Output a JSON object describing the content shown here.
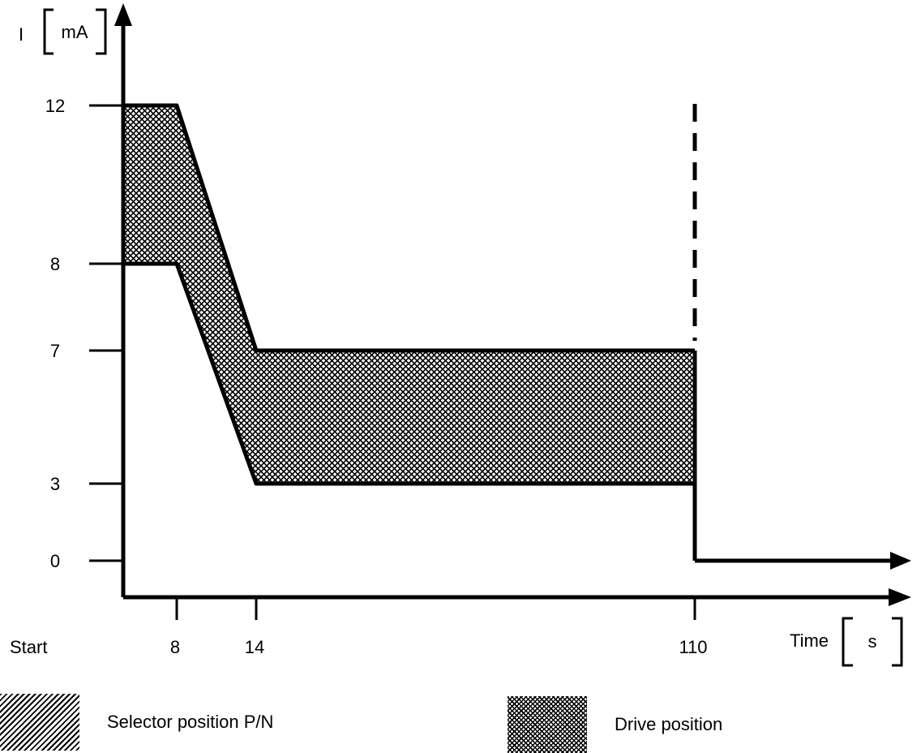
{
  "chart_data": {
    "type": "area",
    "title": "",
    "ylabel": "I",
    "y_unit": "mA",
    "xlabel": "Time",
    "x_unit": "s",
    "x_start_label": "Start",
    "y_ticks": [
      0,
      3,
      7,
      8,
      12
    ],
    "y_tick_labels": [
      "0",
      "3",
      "7",
      "8",
      "12"
    ],
    "x_ticks": [
      8,
      14,
      110
    ],
    "x_tick_labels": [
      "8",
      "14",
      "110"
    ],
    "band": {
      "upper": [
        {
          "x": 0,
          "y": 12
        },
        {
          "x": 8,
          "y": 12
        },
        {
          "x": 14,
          "y": 7
        },
        {
          "x": 110,
          "y": 7
        }
      ],
      "lower": [
        {
          "x": 0,
          "y": 8
        },
        {
          "x": 8,
          "y": 8
        },
        {
          "x": 14,
          "y": 3
        },
        {
          "x": 110,
          "y": 3
        }
      ]
    },
    "drop_at_x": 110,
    "after_drop_value": 0,
    "legend": [
      {
        "label": "Selector position P/N",
        "pattern": "diagonal-hatch"
      },
      {
        "label": "Drive position",
        "pattern": "cross-hatch"
      }
    ],
    "colors": {
      "ink": "#000000",
      "background": "#ffffff"
    }
  }
}
